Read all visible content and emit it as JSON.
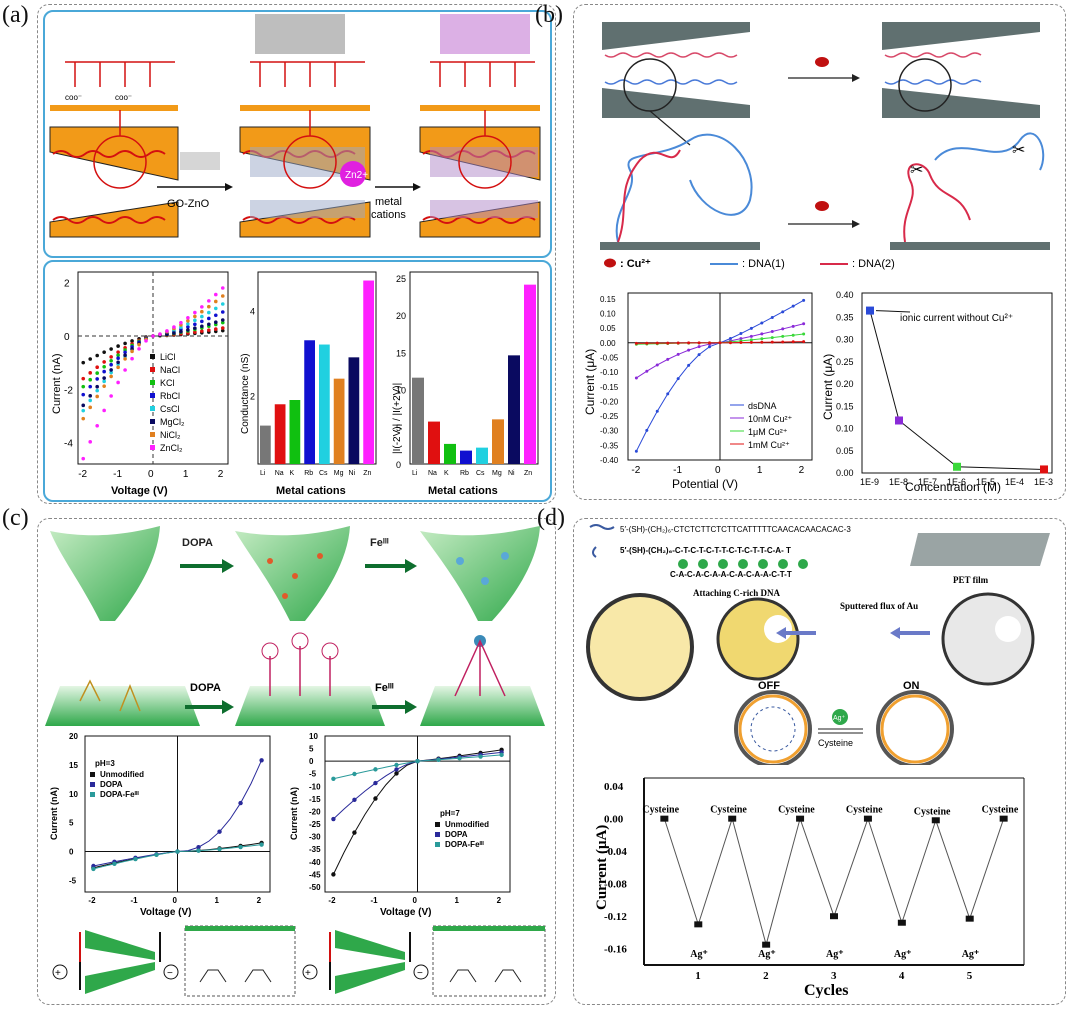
{
  "panels": {
    "a": {
      "label": "(a)",
      "schem": {
        "step1": "GO-ZnO",
        "ion": "Zn2+",
        "step2a": "metal",
        "step2b": "cations"
      },
      "iv": {
        "xlabel": "Voltage (V)",
        "ylabel": "Current (nA)",
        "xticks": [
          "-2",
          "-1",
          "0",
          "1",
          "2"
        ],
        "yticks": [
          "2",
          "0",
          "-2",
          "-4"
        ],
        "legend": [
          "LiCl",
          "NaCl",
          "KCl",
          "RbCl",
          "CsCl",
          "MgCl₂",
          "NiCl₂",
          "ZnCl₂"
        ]
      },
      "bar1": {
        "xlabel": "Metal cations",
        "ylabel": "Conductance (nS)",
        "yticks": [
          "4",
          "2"
        ],
        "categories": [
          "Li",
          "Na",
          "K",
          "Rb",
          "Cs",
          "Mg",
          "Ni",
          "Zn"
        ],
        "values": [
          1.3,
          1.8,
          1.9,
          3.3,
          3.2,
          2.4,
          2.9,
          4.7
        ]
      },
      "bar2": {
        "xlabel": "Metal cations",
        "ylabel": "|I(-2V)| / |I(+2V)|",
        "yticks": [
          "25",
          "20",
          "15",
          "10",
          "5",
          "0"
        ],
        "categories": [
          "Li",
          "Na",
          "K",
          "Rb",
          "Cs",
          "Mg",
          "Ni",
          "Zn"
        ],
        "values": [
          11.6,
          5.7,
          2.7,
          1.8,
          2.2,
          6.0,
          14.6,
          24.1
        ]
      }
    },
    "b": {
      "label": "(b)",
      "legend": {
        "cu": ": Cu²⁺",
        "dna1": ": DNA(1)",
        "dna2": ": DNA(2)"
      },
      "iv": {
        "xlabel": "Potential (V)",
        "ylabel": "Current (μA)",
        "xticks": [
          "-2",
          "-1",
          "0",
          "1",
          "2"
        ],
        "yticks": [
          "0.15",
          "0.10",
          "0.05",
          "0.00",
          "-0.05",
          "-0.10",
          "-0.15",
          "-0.20",
          "-0.25",
          "-0.30",
          "-0.35",
          "-0.40"
        ],
        "legend": [
          "dsDNA",
          "10nM Cu²⁺",
          "1μM  Cu²⁺",
          "1mM  Cu²⁺"
        ]
      },
      "conc": {
        "xlabel": "Concentration (M)",
        "ylabel": "Current (μA)",
        "xticks": [
          "1E-9",
          "1E-8",
          "1E-7",
          "1E-6",
          "1E-5",
          "1E-4",
          "1E-3"
        ],
        "yticks": [
          "0.40",
          "0.35",
          "0.30",
          "0.25",
          "0.20",
          "0.15",
          "0.10",
          "0.05",
          "0.00"
        ],
        "annotation": "ionic current without Cu²⁺",
        "points": [
          {
            "x": "1E-9",
            "y": 0.365
          },
          {
            "x": "1E-8",
            "y": 0.118
          },
          {
            "x": "1E-6",
            "y": 0.014
          },
          {
            "x": "1E-3",
            "y": 0.008
          }
        ]
      }
    },
    "c": {
      "label": "(c)",
      "schem": {
        "dopa": "DOPA",
        "fe": "Feᴵᴵᴵ"
      },
      "iv1": {
        "xlabel": "Voltage (V)",
        "ylabel": "Current (nA)",
        "ph": "pH=3",
        "xticks": [
          "-2",
          "-1",
          "0",
          "1",
          "2"
        ],
        "yticks": [
          "20",
          "15",
          "10",
          "5",
          "0",
          "-5"
        ],
        "legend": [
          "Unmodified",
          "DOPA",
          "DOPA-Feᴵᴵᴵ"
        ]
      },
      "iv2": {
        "xlabel": "Voltage (V)",
        "ylabel": "Current (nA)",
        "ph": "pH=7",
        "xticks": [
          "-2",
          "-1",
          "0",
          "1",
          "2"
        ],
        "yticks": [
          "10",
          "5",
          "0",
          "-5",
          "-10",
          "-15",
          "-20",
          "-25",
          "-30",
          "-35",
          "-40",
          "-45",
          "-50"
        ],
        "legend": [
          "Unmodified",
          "DOPA",
          "DOPA-Feᴵᴵᴵ"
        ]
      }
    },
    "d": {
      "label": "(d)",
      "seq1": "5′-(SH)-(CH₂)₆-CTCTCTTCTCTTCATTTTTCAACACAACACAC-3",
      "seq2": "5′-(SH)-(CH₂)₆-C-T-C-T-C-T-T-C-T-C-T-T-C-A- T",
      "seq3": "C-A-C-A-C-A-A-C-A-C-A-A-C-T-T",
      "pet": "PET film",
      "attach": "Attaching C-rich DNA",
      "sputter": "Sputtered flux of Au",
      "off": "OFF",
      "on": "ON",
      "ag": "Ag⁺",
      "cys": "Cysteine",
      "cycles": {
        "xlabel": "Cycles",
        "ylabel": "Current (μA)",
        "xticks": [
          "1",
          "2",
          "3",
          "4",
          "5"
        ],
        "yticks": [
          "0.04",
          "0.00",
          "-0.04",
          "-0.08",
          "-0.12",
          "-0.16"
        ],
        "top_label": "Cysteine",
        "bottom_label": "Ag⁺"
      }
    }
  },
  "chart_data": [
    {
      "type": "bar",
      "title": "",
      "xlabel": "Metal cations",
      "ylabel": "Conductance (nS)",
      "categories": [
        "Li",
        "Na",
        "K",
        "Rb",
        "Cs",
        "Mg",
        "Ni",
        "Zn"
      ],
      "values": [
        1.3,
        1.8,
        1.9,
        3.3,
        3.2,
        2.4,
        2.9,
        4.7
      ],
      "colors": [
        "#777777",
        "#e01010",
        "#10c010",
        "#1010d0",
        "#20d0e0",
        "#e08020",
        "#0a0a60",
        "#ff20ff"
      ],
      "ylim": [
        0.4,
        4.9
      ]
    },
    {
      "type": "bar",
      "title": "",
      "xlabel": "Metal cations",
      "ylabel": "|I(-2V)| / |I(+2V)|",
      "categories": [
        "Li",
        "Na",
        "K",
        "Rb",
        "Cs",
        "Mg",
        "Ni",
        "Zn"
      ],
      "values": [
        11.6,
        5.7,
        2.7,
        1.8,
        2.2,
        6.0,
        14.6,
        24.1
      ],
      "ylim": [
        0,
        25
      ]
    },
    {
      "type": "line",
      "xlabel": "Concentration (M)",
      "ylabel": "Current (μA)",
      "x": [
        "1E-9",
        "1E-8",
        "1E-6",
        "1E-3"
      ],
      "values": [
        0.365,
        0.118,
        0.014,
        0.008
      ],
      "ylim": [
        0,
        0.4
      ]
    },
    {
      "type": "line",
      "xlabel": "Cycles",
      "ylabel": "Current (μA)",
      "x": [
        0.5,
        1,
        1.5,
        2,
        2.5,
        3,
        3.5,
        4,
        4.5,
        5,
        5.5
      ],
      "values": [
        0.0,
        -0.13,
        0.0,
        -0.155,
        0.0,
        -0.12,
        0.0,
        -0.128,
        -0.002,
        -0.123,
        0.0
      ],
      "ylim": [
        -0.18,
        0.05
      ]
    }
  ]
}
